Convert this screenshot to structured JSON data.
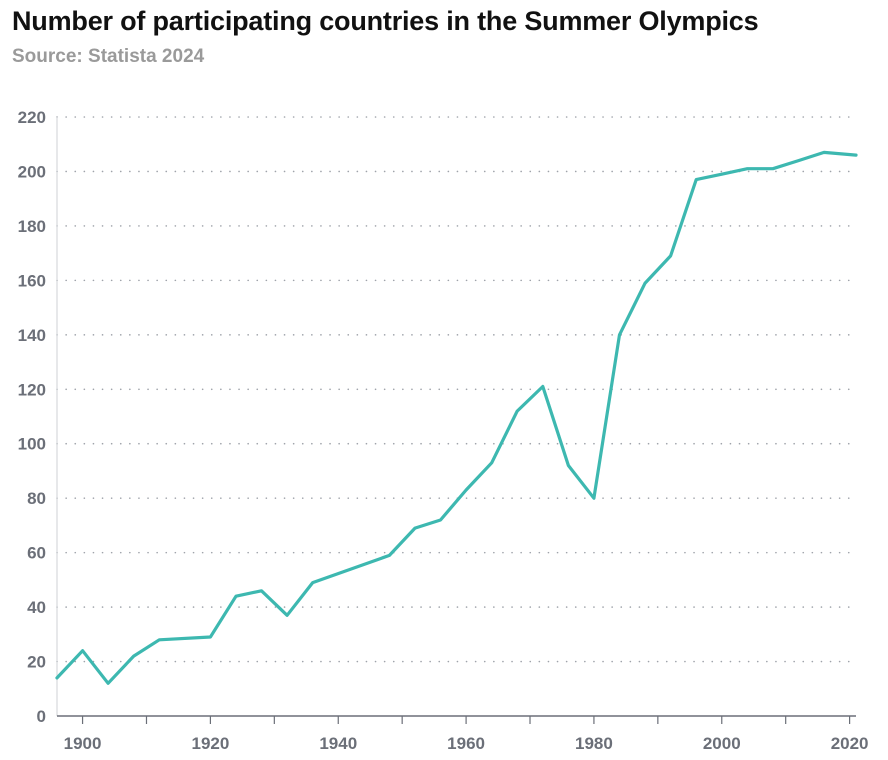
{
  "chart_data": {
    "type": "line",
    "title": "Number of participating countries in the Summer Olympics",
    "subtitle": "Source: Statista 2024",
    "xlabel": "",
    "ylabel": "",
    "xlim": [
      1896,
      2021
    ],
    "ylim": [
      0,
      220
    ],
    "x_ticks": [
      1900,
      1920,
      1940,
      1960,
      1980,
      2000,
      2020
    ],
    "y_ticks": [
      0,
      20,
      40,
      60,
      80,
      100,
      120,
      140,
      160,
      180,
      200,
      220
    ],
    "grid": "horizontal-dotted",
    "line_color": "#3db8b0",
    "series": [
      {
        "x": [
          1896,
          1900,
          1904,
          1908,
          1912,
          1920,
          1924,
          1928,
          1932,
          1936,
          1948,
          1952,
          1956,
          1960,
          1964,
          1968,
          1972,
          1976,
          1980,
          1984,
          1988,
          1992,
          1996,
          2000,
          2004,
          2008,
          2012,
          2016,
          2021
        ],
        "values": [
          14,
          24,
          12,
          22,
          28,
          29,
          44,
          46,
          37,
          49,
          59,
          69,
          72,
          83,
          93,
          112,
          121,
          92,
          80,
          140,
          159,
          169,
          197,
          199,
          201,
          201,
          204,
          207,
          206
        ]
      }
    ]
  }
}
